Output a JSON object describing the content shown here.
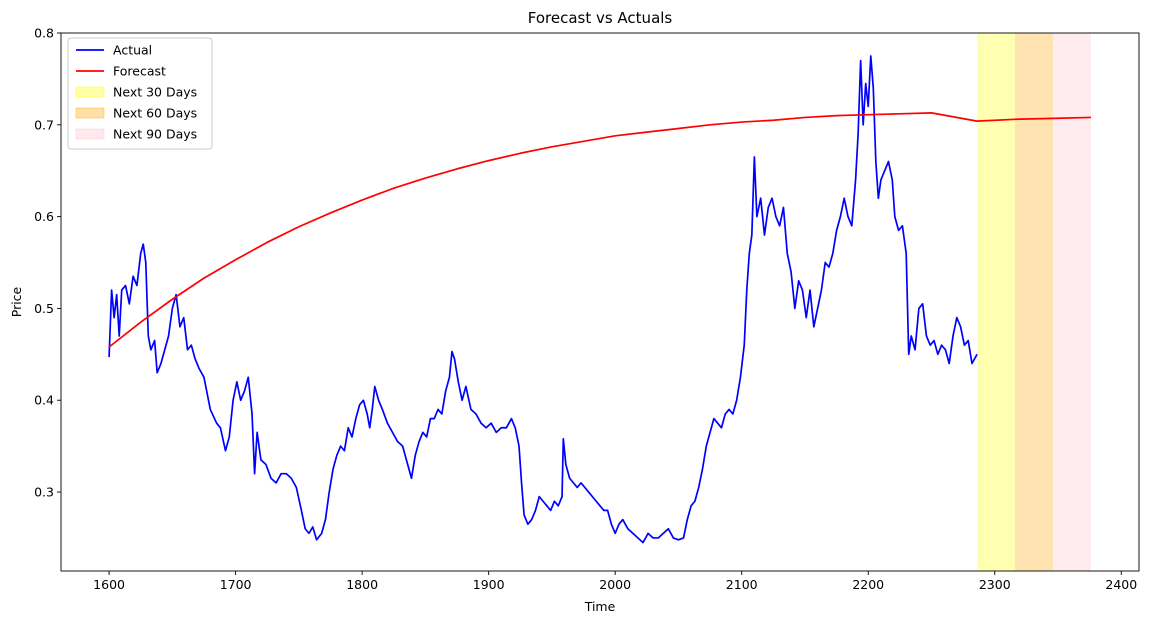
{
  "chart_data": {
    "type": "line",
    "title": "Forecast vs Actuals",
    "xlabel": "Time",
    "ylabel": "Price",
    "xlim": [
      1562,
      2414
    ],
    "ylim": [
      0.214,
      0.8
    ],
    "xticks": [
      1600,
      1700,
      1800,
      1900,
      2000,
      2100,
      2200,
      2300,
      2400
    ],
    "yticks": [
      0.3,
      0.4,
      0.5,
      0.6,
      0.7,
      0.8
    ],
    "xtick_labels": [
      "1600",
      "1700",
      "1800",
      "1900",
      "2000",
      "2100",
      "2200",
      "2300",
      "2400"
    ],
    "ytick_labels": [
      "0.3",
      "0.4",
      "0.5",
      "0.6",
      "0.7",
      "0.8"
    ],
    "grid": false,
    "legend_position": "top-left",
    "series": [
      {
        "name": "Actual",
        "color": "#0000ff",
        "points": [
          [
            1600,
            0.447
          ],
          [
            1602,
            0.52
          ],
          [
            1604,
            0.49
          ],
          [
            1606,
            0.515
          ],
          [
            1608,
            0.47
          ],
          [
            1610,
            0.52
          ],
          [
            1613,
            0.525
          ],
          [
            1616,
            0.505
          ],
          [
            1619,
            0.535
          ],
          [
            1622,
            0.525
          ],
          [
            1625,
            0.56
          ],
          [
            1627,
            0.57
          ],
          [
            1629,
            0.55
          ],
          [
            1631,
            0.47
          ],
          [
            1633,
            0.455
          ],
          [
            1636,
            0.465
          ],
          [
            1638,
            0.43
          ],
          [
            1641,
            0.44
          ],
          [
            1644,
            0.455
          ],
          [
            1647,
            0.47
          ],
          [
            1650,
            0.5
          ],
          [
            1653,
            0.515
          ],
          [
            1656,
            0.48
          ],
          [
            1659,
            0.49
          ],
          [
            1662,
            0.455
          ],
          [
            1665,
            0.46
          ],
          [
            1668,
            0.445
          ],
          [
            1671,
            0.435
          ],
          [
            1675,
            0.425
          ],
          [
            1680,
            0.39
          ],
          [
            1685,
            0.375
          ],
          [
            1688,
            0.37
          ],
          [
            1692,
            0.345
          ],
          [
            1695,
            0.36
          ],
          [
            1698,
            0.4
          ],
          [
            1701,
            0.42
          ],
          [
            1704,
            0.4
          ],
          [
            1707,
            0.41
          ],
          [
            1710,
            0.425
          ],
          [
            1713,
            0.385
          ],
          [
            1715,
            0.32
          ],
          [
            1717,
            0.365
          ],
          [
            1720,
            0.335
          ],
          [
            1724,
            0.33
          ],
          [
            1728,
            0.315
          ],
          [
            1732,
            0.31
          ],
          [
            1736,
            0.32
          ],
          [
            1740,
            0.32
          ],
          [
            1744,
            0.315
          ],
          [
            1748,
            0.305
          ],
          [
            1752,
            0.28
          ],
          [
            1755,
            0.26
          ],
          [
            1758,
            0.255
          ],
          [
            1761,
            0.262
          ],
          [
            1764,
            0.248
          ],
          [
            1768,
            0.255
          ],
          [
            1771,
            0.27
          ],
          [
            1774,
            0.3
          ],
          [
            1777,
            0.325
          ],
          [
            1780,
            0.34
          ],
          [
            1783,
            0.35
          ],
          [
            1786,
            0.345
          ],
          [
            1789,
            0.37
          ],
          [
            1792,
            0.36
          ],
          [
            1795,
            0.38
          ],
          [
            1798,
            0.395
          ],
          [
            1801,
            0.4
          ],
          [
            1804,
            0.385
          ],
          [
            1806,
            0.37
          ],
          [
            1808,
            0.39
          ],
          [
            1810,
            0.415
          ],
          [
            1813,
            0.4
          ],
          [
            1816,
            0.39
          ],
          [
            1820,
            0.375
          ],
          [
            1824,
            0.365
          ],
          [
            1828,
            0.355
          ],
          [
            1832,
            0.35
          ],
          [
            1836,
            0.33
          ],
          [
            1839,
            0.315
          ],
          [
            1842,
            0.34
          ],
          [
            1845,
            0.355
          ],
          [
            1848,
            0.365
          ],
          [
            1851,
            0.36
          ],
          [
            1854,
            0.38
          ],
          [
            1857,
            0.38
          ],
          [
            1860,
            0.39
          ],
          [
            1863,
            0.385
          ],
          [
            1866,
            0.41
          ],
          [
            1869,
            0.425
          ],
          [
            1871,
            0.453
          ],
          [
            1873,
            0.445
          ],
          [
            1876,
            0.42
          ],
          [
            1879,
            0.4
          ],
          [
            1882,
            0.415
          ],
          [
            1886,
            0.39
          ],
          [
            1890,
            0.385
          ],
          [
            1894,
            0.375
          ],
          [
            1898,
            0.37
          ],
          [
            1902,
            0.375
          ],
          [
            1906,
            0.365
          ],
          [
            1910,
            0.37
          ],
          [
            1914,
            0.37
          ],
          [
            1918,
            0.38
          ],
          [
            1921,
            0.37
          ],
          [
            1924,
            0.35
          ],
          [
            1926,
            0.31
          ],
          [
            1928,
            0.275
          ],
          [
            1931,
            0.265
          ],
          [
            1934,
            0.27
          ],
          [
            1937,
            0.28
          ],
          [
            1940,
            0.295
          ],
          [
            1943,
            0.29
          ],
          [
            1946,
            0.285
          ],
          [
            1949,
            0.28
          ],
          [
            1952,
            0.29
          ],
          [
            1955,
            0.285
          ],
          [
            1958,
            0.295
          ],
          [
            1959,
            0.358
          ],
          [
            1961,
            0.33
          ],
          [
            1964,
            0.315
          ],
          [
            1967,
            0.31
          ],
          [
            1970,
            0.305
          ],
          [
            1973,
            0.31
          ],
          [
            1976,
            0.305
          ],
          [
            1979,
            0.3
          ],
          [
            1982,
            0.295
          ],
          [
            1985,
            0.29
          ],
          [
            1988,
            0.285
          ],
          [
            1991,
            0.28
          ],
          [
            1994,
            0.28
          ],
          [
            1997,
            0.265
          ],
          [
            2000,
            0.255
          ],
          [
            2003,
            0.265
          ],
          [
            2006,
            0.27
          ],
          [
            2010,
            0.26
          ],
          [
            2014,
            0.255
          ],
          [
            2018,
            0.25
          ],
          [
            2022,
            0.245
          ],
          [
            2026,
            0.255
          ],
          [
            2030,
            0.25
          ],
          [
            2034,
            0.25
          ],
          [
            2038,
            0.255
          ],
          [
            2042,
            0.26
          ],
          [
            2046,
            0.25
          ],
          [
            2050,
            0.248
          ],
          [
            2054,
            0.25
          ],
          [
            2057,
            0.27
          ],
          [
            2060,
            0.285
          ],
          [
            2063,
            0.29
          ],
          [
            2066,
            0.305
          ],
          [
            2069,
            0.325
          ],
          [
            2072,
            0.35
          ],
          [
            2075,
            0.365
          ],
          [
            2078,
            0.38
          ],
          [
            2081,
            0.375
          ],
          [
            2084,
            0.37
          ],
          [
            2087,
            0.385
          ],
          [
            2090,
            0.39
          ],
          [
            2093,
            0.385
          ],
          [
            2096,
            0.4
          ],
          [
            2099,
            0.425
          ],
          [
            2102,
            0.46
          ],
          [
            2104,
            0.52
          ],
          [
            2106,
            0.56
          ],
          [
            2108,
            0.58
          ],
          [
            2110,
            0.665
          ],
          [
            2112,
            0.6
          ],
          [
            2115,
            0.62
          ],
          [
            2118,
            0.58
          ],
          [
            2121,
            0.61
          ],
          [
            2124,
            0.62
          ],
          [
            2127,
            0.6
          ],
          [
            2130,
            0.59
          ],
          [
            2133,
            0.61
          ],
          [
            2136,
            0.56
          ],
          [
            2139,
            0.54
          ],
          [
            2142,
            0.5
          ],
          [
            2145,
            0.53
          ],
          [
            2148,
            0.52
          ],
          [
            2151,
            0.49
          ],
          [
            2154,
            0.52
          ],
          [
            2157,
            0.48
          ],
          [
            2160,
            0.5
          ],
          [
            2163,
            0.52
          ],
          [
            2166,
            0.55
          ],
          [
            2169,
            0.545
          ],
          [
            2172,
            0.56
          ],
          [
            2175,
            0.585
          ],
          [
            2178,
            0.6
          ],
          [
            2181,
            0.62
          ],
          [
            2184,
            0.6
          ],
          [
            2187,
            0.59
          ],
          [
            2190,
            0.64
          ],
          [
            2192,
            0.69
          ],
          [
            2194,
            0.77
          ],
          [
            2196,
            0.7
          ],
          [
            2198,
            0.745
          ],
          [
            2200,
            0.72
          ],
          [
            2202,
            0.775
          ],
          [
            2204,
            0.74
          ],
          [
            2206,
            0.66
          ],
          [
            2208,
            0.62
          ],
          [
            2210,
            0.64
          ],
          [
            2213,
            0.65
          ],
          [
            2216,
            0.66
          ],
          [
            2219,
            0.64
          ],
          [
            2221,
            0.6
          ],
          [
            2224,
            0.585
          ],
          [
            2227,
            0.59
          ],
          [
            2230,
            0.56
          ],
          [
            2232,
            0.45
          ],
          [
            2234,
            0.47
          ],
          [
            2237,
            0.455
          ],
          [
            2240,
            0.5
          ],
          [
            2243,
            0.505
          ],
          [
            2246,
            0.47
          ],
          [
            2249,
            0.46
          ],
          [
            2252,
            0.465
          ],
          [
            2255,
            0.45
          ],
          [
            2258,
            0.46
          ],
          [
            2261,
            0.455
          ],
          [
            2264,
            0.44
          ],
          [
            2267,
            0.47
          ],
          [
            2270,
            0.49
          ],
          [
            2273,
            0.48
          ],
          [
            2276,
            0.46
          ],
          [
            2279,
            0.465
          ],
          [
            2282,
            0.44
          ],
          [
            2286,
            0.45
          ]
        ]
      },
      {
        "name": "Forecast",
        "color": "#ff0000",
        "points": [
          [
            1600,
            0.458
          ],
          [
            1625,
            0.485
          ],
          [
            1650,
            0.51
          ],
          [
            1675,
            0.533
          ],
          [
            1700,
            0.553
          ],
          [
            1725,
            0.572
          ],
          [
            1750,
            0.589
          ],
          [
            1775,
            0.604
          ],
          [
            1800,
            0.618
          ],
          [
            1825,
            0.631
          ],
          [
            1850,
            0.642
          ],
          [
            1875,
            0.652
          ],
          [
            1900,
            0.661
          ],
          [
            1925,
            0.669
          ],
          [
            1950,
            0.676
          ],
          [
            1975,
            0.682
          ],
          [
            2000,
            0.688
          ],
          [
            2025,
            0.692
          ],
          [
            2050,
            0.696
          ],
          [
            2075,
            0.7
          ],
          [
            2100,
            0.703
          ],
          [
            2125,
            0.705
          ],
          [
            2150,
            0.708
          ],
          [
            2175,
            0.71
          ],
          [
            2200,
            0.711
          ],
          [
            2225,
            0.712
          ],
          [
            2250,
            0.713
          ],
          [
            2286,
            0.704
          ],
          [
            2316,
            0.706
          ],
          [
            2346,
            0.707
          ],
          [
            2376,
            0.708
          ]
        ]
      }
    ],
    "bands": [
      {
        "name": "Next 30 Days",
        "x0": 2286,
        "x1": 2316,
        "color": "#ffff00",
        "alpha": 0.3
      },
      {
        "name": "Next 60 Days",
        "x0": 2316,
        "x1": 2346,
        "color": "#ffa500",
        "alpha": 0.3
      },
      {
        "name": "Next 90 Days",
        "x0": 2346,
        "x1": 2376,
        "color": "#ffc0cb",
        "alpha": 0.3
      }
    ]
  }
}
